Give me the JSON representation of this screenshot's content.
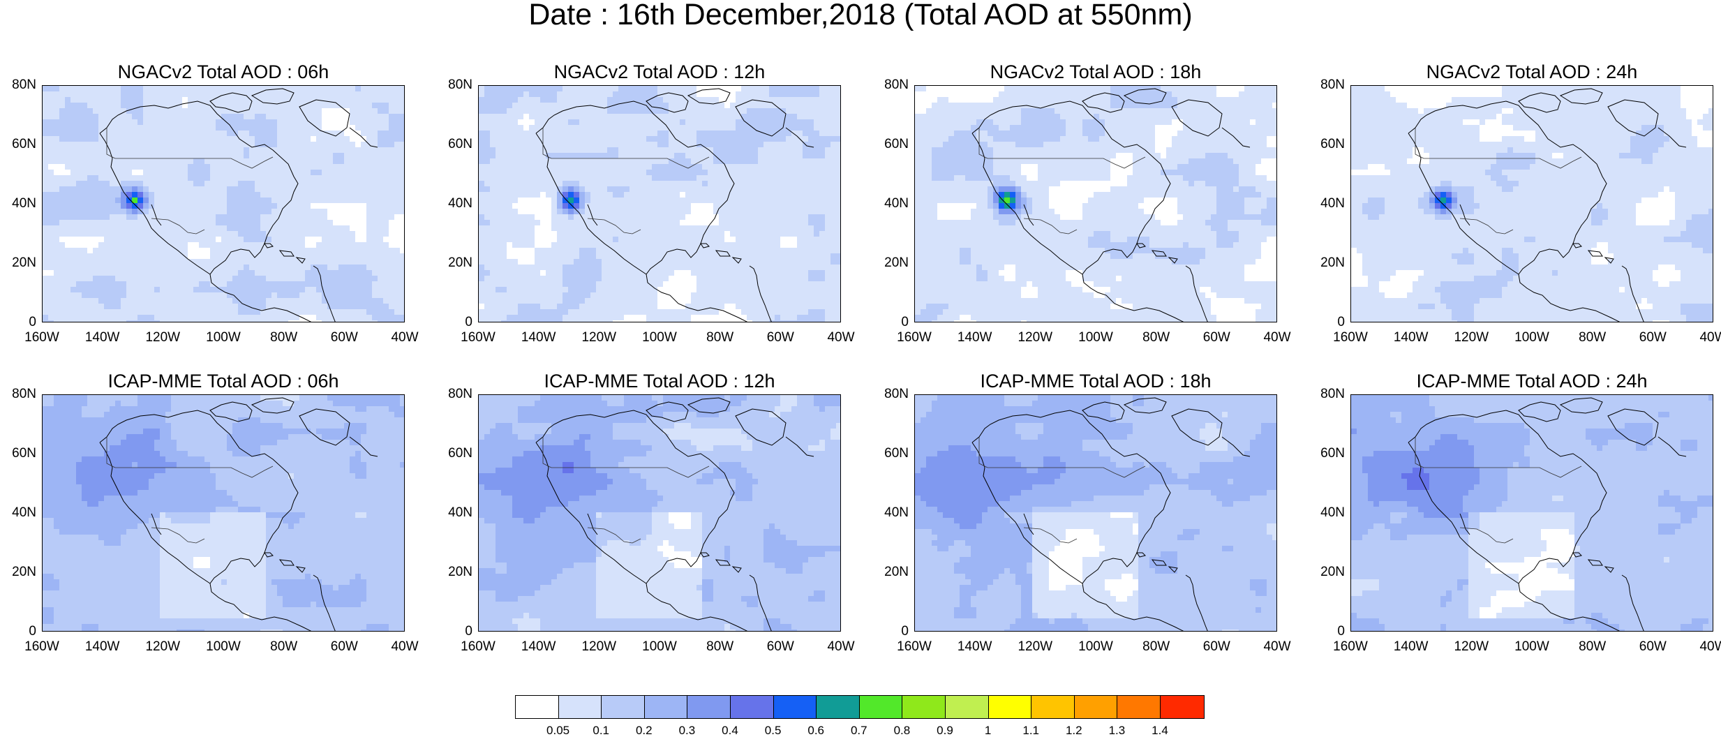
{
  "title": "Date : 16th December,2018 (Total AOD at 550nm)",
  "lat_ticks": [
    "80N",
    "60N",
    "40N",
    "20N",
    "0"
  ],
  "lon_ticks": [
    "160W",
    "140W",
    "120W",
    "100W",
    "80W",
    "60W",
    "40W"
  ],
  "panels": [
    {
      "title": "NGACv2 Total AOD : 06h",
      "model": "NGACv2",
      "hour": "06h"
    },
    {
      "title": "NGACv2 Total AOD : 12h",
      "model": "NGACv2",
      "hour": "12h"
    },
    {
      "title": "NGACv2 Total AOD : 18h",
      "model": "NGACv2",
      "hour": "18h"
    },
    {
      "title": "NGACv2 Total AOD : 24h",
      "model": "NGACv2",
      "hour": "24h"
    },
    {
      "title": "ICAP-MME Total AOD : 06h",
      "model": "ICAP-MME",
      "hour": "06h"
    },
    {
      "title": "ICAP-MME Total AOD : 12h",
      "model": "ICAP-MME",
      "hour": "12h"
    },
    {
      "title": "ICAP-MME Total AOD : 18h",
      "model": "ICAP-MME",
      "hour": "18h"
    },
    {
      "title": "ICAP-MME Total AOD : 24h",
      "model": "ICAP-MME",
      "hour": "24h"
    }
  ],
  "colorbar": {
    "labels": [
      "0.05",
      "0.1",
      "0.2",
      "0.3",
      "0.4",
      "0.5",
      "0.6",
      "0.7",
      "0.8",
      "0.9",
      "1",
      "1.1",
      "1.2",
      "1.3",
      "1.4"
    ],
    "colors": [
      "#ffffff",
      "#d6e2fb",
      "#b8cbf8",
      "#9db5f5",
      "#8099f0",
      "#6673ea",
      "#1560f5",
      "#119c96",
      "#52e82a",
      "#8fe81b",
      "#c0ef50",
      "#ffff00",
      "#ffc400",
      "#ffa000",
      "#ff7800",
      "#ff2a00"
    ]
  }
}
